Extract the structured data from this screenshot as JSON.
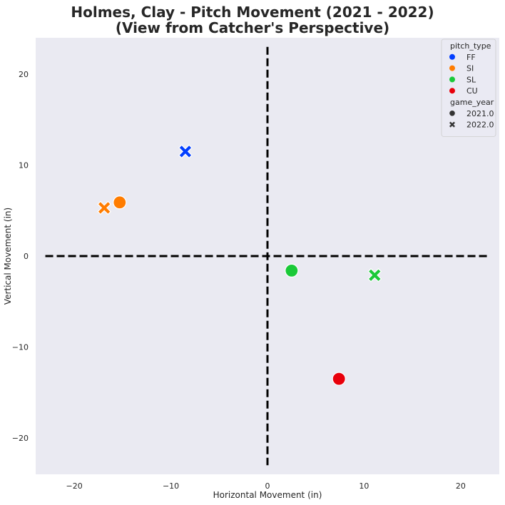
{
  "chart_data": {
    "type": "scatter",
    "title_line1": "Holmes, Clay - Pitch Movement (2021 - 2022)",
    "title_line2": "(View from Catcher's Perspective)",
    "xlabel": "Horizontal Movement (in)",
    "ylabel": "Vertical Movement (in)",
    "xlim": [
      -24,
      24
    ],
    "ylim": [
      -24,
      24
    ],
    "xticks": [
      -20,
      -10,
      0,
      10,
      20
    ],
    "yticks": [
      -20,
      -10,
      0,
      10,
      20
    ],
    "grid": false,
    "background": "#EAEAF2",
    "reference_lines": [
      {
        "orientation": "vertical",
        "value": 0,
        "from": -23,
        "to": 23,
        "style": "dashed",
        "color": "#000000"
      },
      {
        "orientation": "horizontal",
        "value": 0,
        "from": -23,
        "to": 23,
        "style": "dashed",
        "color": "#000000"
      }
    ],
    "legend": {
      "placement": "top-right",
      "hue_title": "pitch_type",
      "hue": [
        {
          "label": "FF",
          "color": "#023EFF"
        },
        {
          "label": "SI",
          "color": "#FF7C00"
        },
        {
          "label": "SL",
          "color": "#1AC938"
        },
        {
          "label": "CU",
          "color": "#E8000B"
        }
      ],
      "style_title": "game_year",
      "styles": [
        {
          "label": "2021.0",
          "marker": "circle"
        },
        {
          "label": "2022.0",
          "marker": "x"
        }
      ]
    },
    "points": [
      {
        "pitch_type": "FF",
        "game_year": "2022.0",
        "x": -8.5,
        "y": 11.5
      },
      {
        "pitch_type": "SI",
        "game_year": "2021.0",
        "x": -15.3,
        "y": 5.9
      },
      {
        "pitch_type": "SI",
        "game_year": "2022.0",
        "x": -16.9,
        "y": 5.3
      },
      {
        "pitch_type": "SL",
        "game_year": "2021.0",
        "x": 2.5,
        "y": -1.6
      },
      {
        "pitch_type": "SL",
        "game_year": "2022.0",
        "x": 11.1,
        "y": -2.1
      },
      {
        "pitch_type": "CU",
        "game_year": "2021.0",
        "x": 7.4,
        "y": -13.5
      }
    ]
  }
}
